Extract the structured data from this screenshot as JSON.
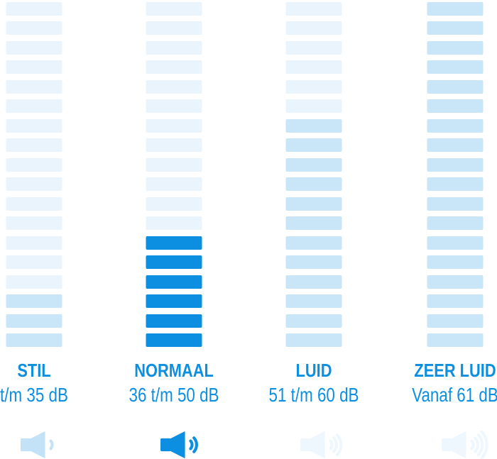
{
  "colors": {
    "accent": "#0c8fe0",
    "bar_inactive": "#e9f4fc",
    "bar_filled": "#c9e5f8",
    "bar_active": "#0c8fe0",
    "icon_light": "#c3e2f7",
    "icon_active": "#0c8fe0",
    "icon_faint": "#eef7fd"
  },
  "meter": {
    "bars_total": 18
  },
  "columns": [
    {
      "id": "stil",
      "name": "STIL",
      "range": "t/m 35 dB",
      "filled_bars": 3,
      "selected": false,
      "icon": {
        "waves": 1,
        "color": "#c3e2f7"
      }
    },
    {
      "id": "normaal",
      "name": "NORMAAL",
      "range": "36 t/m 50 dB",
      "filled_bars": 6,
      "selected": true,
      "icon": {
        "waves": 2,
        "color": "#0c8fe0"
      }
    },
    {
      "id": "luid",
      "name": "LUID",
      "range": "51 t/m 60 dB",
      "filled_bars": 12,
      "selected": false,
      "icon": {
        "waves": 3,
        "color": "#eef7fd"
      }
    },
    {
      "id": "zeer-luid",
      "name": "ZEER LUID",
      "range": "Vanaf 61 dB",
      "filled_bars": 18,
      "selected": false,
      "icon": {
        "waves": 4,
        "color": "#eef7fd"
      }
    }
  ]
}
